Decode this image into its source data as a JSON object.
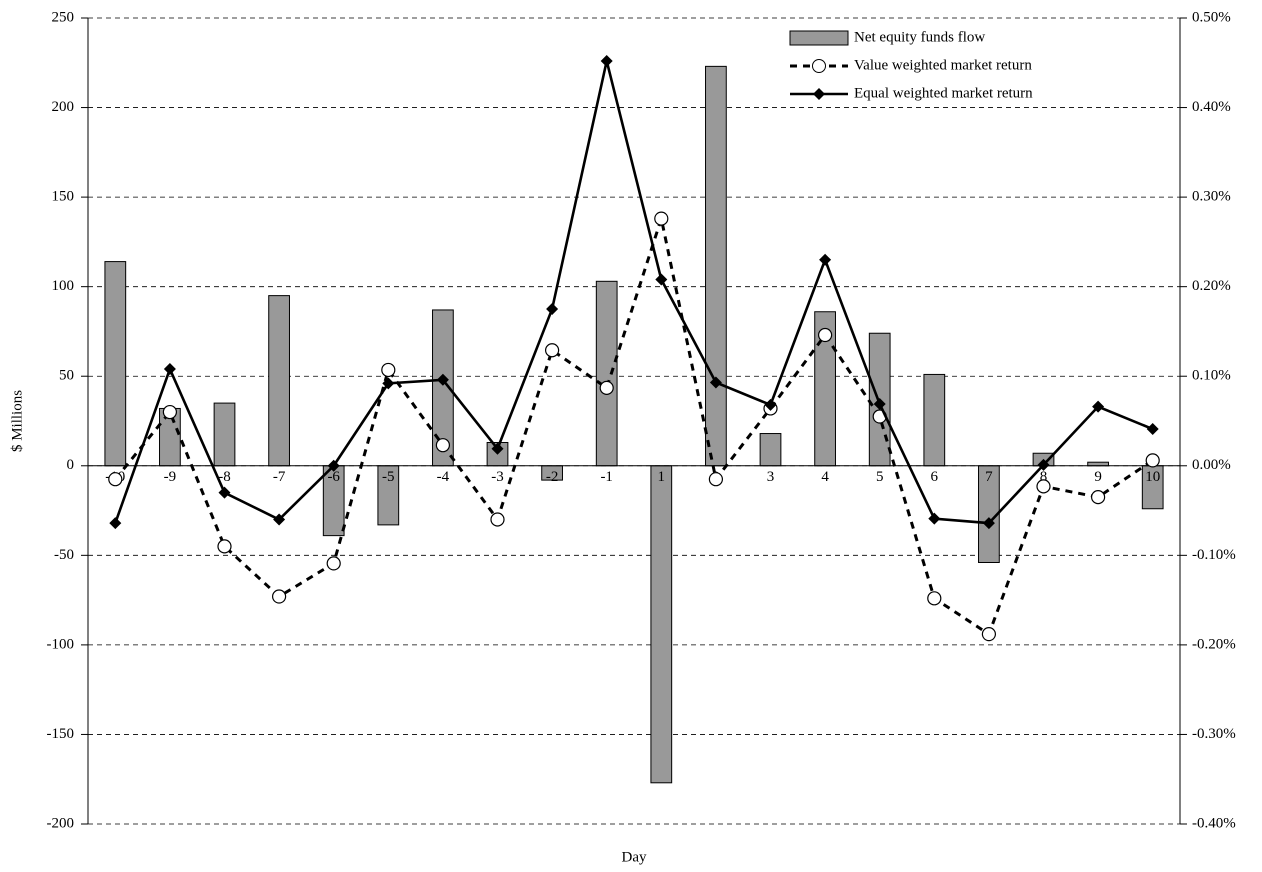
{
  "chart_data": {
    "type": "combo",
    "xlabel": "Day",
    "ylabel": "$ Millions",
    "categories": [
      "-10",
      "-9",
      "-8",
      "-7",
      "-6",
      "-5",
      "-4",
      "-3",
      "-2",
      "-1",
      "1",
      "2",
      "3",
      "4",
      "5",
      "6",
      "7",
      "8",
      "9",
      "10"
    ],
    "series": [
      {
        "name": "Net equity funds flow",
        "type": "bar",
        "color": "#999999",
        "values": [
          114,
          32,
          35,
          95,
          -39,
          -33,
          87,
          13,
          -8,
          103,
          -177,
          223,
          18,
          86,
          74,
          51,
          -54,
          7,
          2,
          -24
        ]
      },
      {
        "name": "Value weighted market return",
        "type": "line",
        "axis": "y2",
        "color": "#000000",
        "dashed": true,
        "marker": "circle",
        "values": [
          -0.015,
          0.06,
          -0.09,
          -0.146,
          -0.109,
          0.107,
          0.023,
          -0.06,
          0.129,
          0.087,
          0.276,
          -0.015,
          0.064,
          0.146,
          0.055,
          -0.148,
          -0.188,
          -0.023,
          -0.035,
          0.006
        ]
      },
      {
        "name": "Equal weighted market return",
        "type": "line",
        "axis": "y2",
        "color": "#000000",
        "dashed": false,
        "marker": "diamond",
        "values": [
          -0.064,
          0.108,
          -0.03,
          -0.06,
          0,
          0.092,
          0.096,
          0.019,
          0.175,
          0.452,
          0.208,
          0.093,
          0.068,
          0.23,
          0.069,
          -0.059,
          -0.064,
          0.001,
          0.066,
          0.041
        ]
      }
    ],
    "ylim": [
      -200,
      250
    ],
    "yticks": [
      -200,
      -150,
      -100,
      -50,
      0,
      50,
      100,
      150,
      200,
      250
    ],
    "y2lim": [
      -0.4,
      0.5
    ],
    "y2ticks": [
      {
        "value": -0.4,
        "label": "-0.40%"
      },
      {
        "value": -0.3,
        "label": "-0.30%"
      },
      {
        "value": -0.2,
        "label": "-0.20%"
      },
      {
        "value": -0.1,
        "label": "-0.10%"
      },
      {
        "value": 0,
        "label": "0.00%"
      },
      {
        "value": 0.1,
        "label": "0.10%"
      },
      {
        "value": 0.2,
        "label": "0.20%"
      },
      {
        "value": 0.3,
        "label": "0.30%"
      },
      {
        "value": 0.4,
        "label": "0.40%"
      },
      {
        "value": 0.5,
        "label": "0.50%"
      }
    ],
    "grid": true,
    "legend": "upper right"
  }
}
